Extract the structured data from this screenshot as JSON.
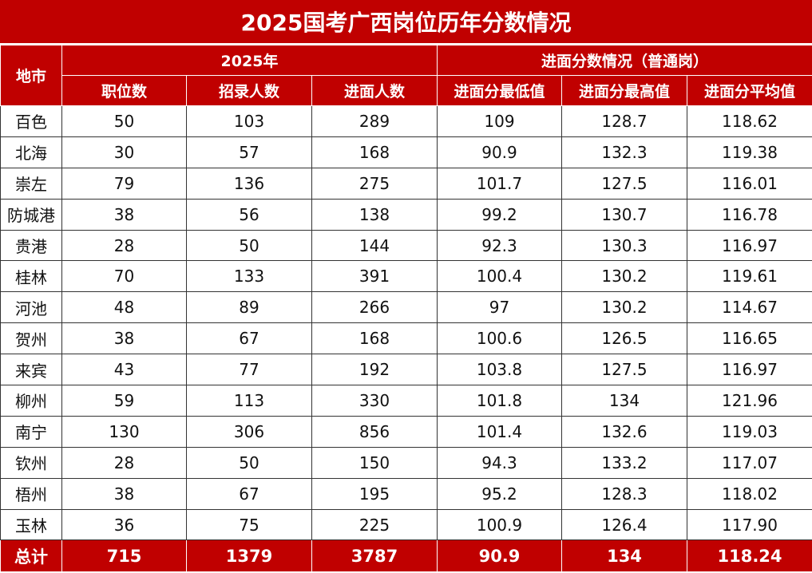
{
  "title": "2025国考广西岗位历年分数情况",
  "headers": {
    "city": "地市",
    "group_2025": "2025年",
    "group_scores": "进面分数情况（普通岗）",
    "columns": [
      "职位数",
      "招录人数",
      "进面人数",
      "进面分最低值",
      "进面分最高值",
      "进面分平均值"
    ]
  },
  "rows": [
    [
      "百色",
      "50",
      "103",
      "289",
      "109",
      "128.7",
      "118.62"
    ],
    [
      "北海",
      "30",
      "57",
      "168",
      "90.9",
      "132.3",
      "119.38"
    ],
    [
      "崇左",
      "79",
      "136",
      "275",
      "101.7",
      "127.5",
      "116.01"
    ],
    [
      "防城港",
      "38",
      "56",
      "138",
      "99.2",
      "130.7",
      "116.78"
    ],
    [
      "贵港",
      "28",
      "50",
      "144",
      "92.3",
      "130.3",
      "116.97"
    ],
    [
      "桂林",
      "70",
      "133",
      "391",
      "100.4",
      "130.2",
      "119.61"
    ],
    [
      "河池",
      "48",
      "89",
      "266",
      "97",
      "130.2",
      "114.67"
    ],
    [
      "贺州",
      "38",
      "67",
      "168",
      "100.6",
      "126.5",
      "116.65"
    ],
    [
      "来宾",
      "43",
      "77",
      "192",
      "103.8",
      "127.5",
      "116.97"
    ],
    [
      "柳州",
      "59",
      "113",
      "330",
      "101.8",
      "134",
      "121.96"
    ],
    [
      "南宁",
      "130",
      "306",
      "856",
      "101.4",
      "132.6",
      "119.03"
    ],
    [
      "钦州",
      "28",
      "50",
      "150",
      "94.3",
      "133.2",
      "117.07"
    ],
    [
      "梧州",
      "38",
      "67",
      "195",
      "95.2",
      "128.3",
      "118.02"
    ],
    [
      "玉林",
      "36",
      "75",
      "225",
      "100.9",
      "126.4",
      "117.90"
    ]
  ],
  "total": [
    "总计",
    "715",
    "1379",
    "3787",
    "90.9",
    "134",
    "118.24"
  ],
  "colors": {
    "accent": "#c00000",
    "text": "#111111"
  },
  "chart_data": {
    "type": "table",
    "title": "2025国考广西岗位历年分数情况",
    "columns": [
      "地市",
      "职位数",
      "招录人数",
      "进面人数",
      "进面分最低值",
      "进面分最高值",
      "进面分平均值"
    ],
    "column_groups": [
      {
        "label": "2025年",
        "span": [
          "职位数",
          "招录人数",
          "进面人数"
        ]
      },
      {
        "label": "进面分数情况（普通岗）",
        "span": [
          "进面分最低值",
          "进面分最高值",
          "进面分平均值"
        ]
      }
    ],
    "categories": [
      "百色",
      "北海",
      "崇左",
      "防城港",
      "贵港",
      "桂林",
      "河池",
      "贺州",
      "来宾",
      "柳州",
      "南宁",
      "钦州",
      "梧州",
      "玉林"
    ],
    "series": [
      {
        "name": "职位数",
        "values": [
          50,
          30,
          79,
          38,
          28,
          70,
          48,
          38,
          43,
          59,
          130,
          28,
          38,
          36
        ]
      },
      {
        "name": "招录人数",
        "values": [
          103,
          57,
          136,
          56,
          50,
          133,
          89,
          67,
          77,
          113,
          306,
          50,
          67,
          75
        ]
      },
      {
        "name": "进面人数",
        "values": [
          289,
          168,
          275,
          138,
          144,
          391,
          266,
          168,
          192,
          330,
          856,
          150,
          195,
          225
        ]
      },
      {
        "name": "进面分最低值",
        "values": [
          109,
          90.9,
          101.7,
          99.2,
          92.3,
          100.4,
          97,
          100.6,
          103.8,
          101.8,
          101.4,
          94.3,
          95.2,
          100.9
        ]
      },
      {
        "name": "进面分最高值",
        "values": [
          128.7,
          132.3,
          127.5,
          130.7,
          130.3,
          130.2,
          130.2,
          126.5,
          127.5,
          134,
          132.6,
          133.2,
          128.3,
          126.4
        ]
      },
      {
        "name": "进面分平均值",
        "values": [
          118.62,
          119.38,
          116.01,
          116.78,
          116.97,
          119.61,
          114.67,
          116.65,
          116.97,
          121.96,
          119.03,
          117.07,
          118.02,
          117.9
        ]
      }
    ],
    "totals": {
      "职位数": 715,
      "招录人数": 1379,
      "进面人数": 3787,
      "进面分最低值": 90.9,
      "进面分最高值": 134,
      "进面分平均值": 118.24
    }
  }
}
